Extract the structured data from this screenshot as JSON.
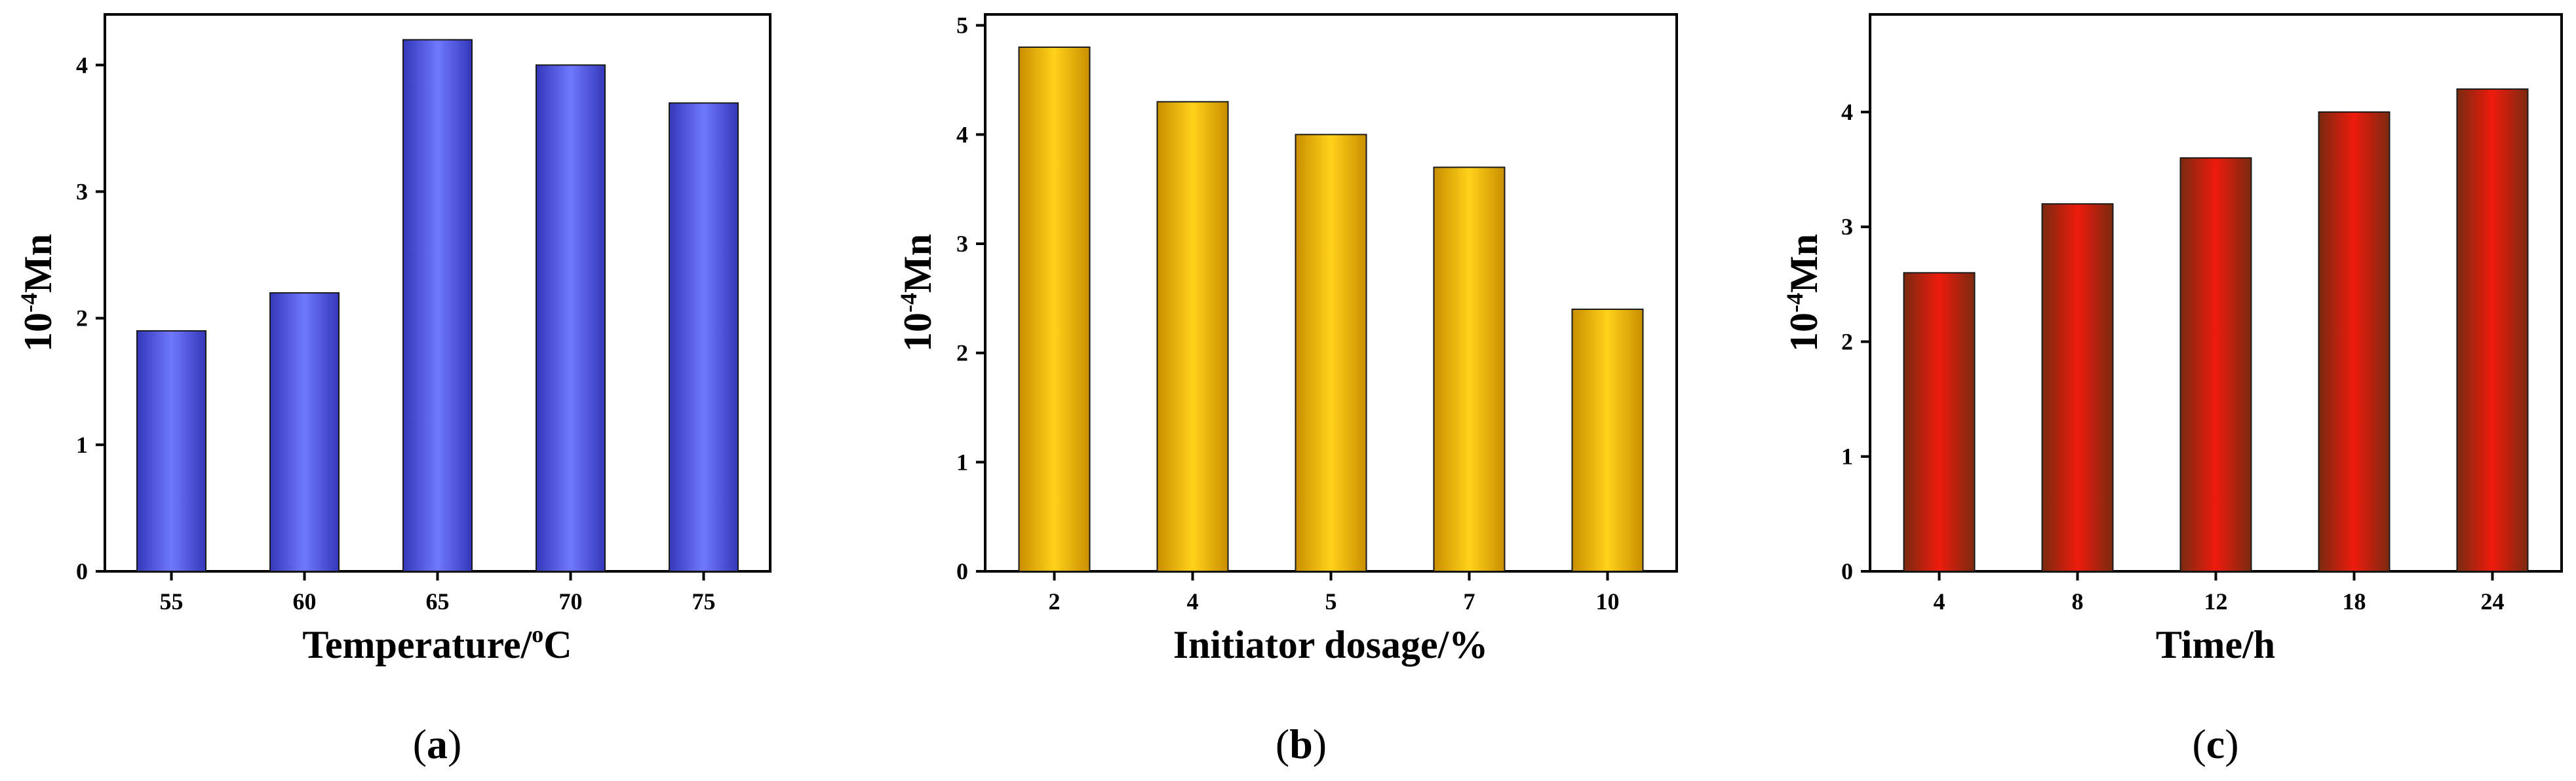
{
  "colors": {
    "background": "#ffffff",
    "axis": "#000000"
  },
  "chart_data": [
    {
      "id": "a",
      "type": "bar",
      "panel_label": "a",
      "categories": [
        "55",
        "60",
        "65",
        "70",
        "75"
      ],
      "values": [
        1.9,
        2.2,
        4.2,
        4.0,
        3.7
      ],
      "ylim": [
        0,
        4.4
      ],
      "yticks": [
        0,
        1,
        2,
        3,
        4
      ],
      "xlabel_main": "Temperature/",
      "xlabel_sup": "o",
      "xlabel_tail": "C",
      "ylabel_base": "10",
      "ylabel_sup": "-4",
      "ylabel_tail": "Mn",
      "bar_color_edge": "#3438b8",
      "bar_color_center": "#6f78ff"
    },
    {
      "id": "b",
      "type": "bar",
      "panel_label": "b",
      "categories": [
        "2",
        "4",
        "5",
        "7",
        "10"
      ],
      "values": [
        4.8,
        4.3,
        4.0,
        3.7,
        2.4
      ],
      "ylim": [
        0,
        5.1
      ],
      "yticks": [
        0,
        1,
        2,
        3,
        4,
        5
      ],
      "xlabel_main": "Initiator dosage/%",
      "xlabel_sup": "",
      "xlabel_tail": "",
      "ylabel_base": "10",
      "ylabel_sup": "-4",
      "ylabel_tail": "Mn",
      "bar_color_edge": "#c98e00",
      "bar_color_center": "#ffd21a"
    },
    {
      "id": "c",
      "type": "bar",
      "panel_label": "c",
      "categories": [
        "4",
        "8",
        "12",
        "18",
        "24"
      ],
      "values": [
        2.6,
        3.2,
        3.6,
        4.0,
        4.2
      ],
      "ylim": [
        0,
        4.85
      ],
      "yticks": [
        0,
        1,
        2,
        3,
        4
      ],
      "xlabel_main": "Time/h",
      "xlabel_sup": "",
      "xlabel_tail": "",
      "ylabel_base": "10",
      "ylabel_sup": "-4",
      "ylabel_tail": "Mn",
      "bar_color_edge": "#7a2a10",
      "bar_color_center": "#ee1b0c"
    }
  ]
}
